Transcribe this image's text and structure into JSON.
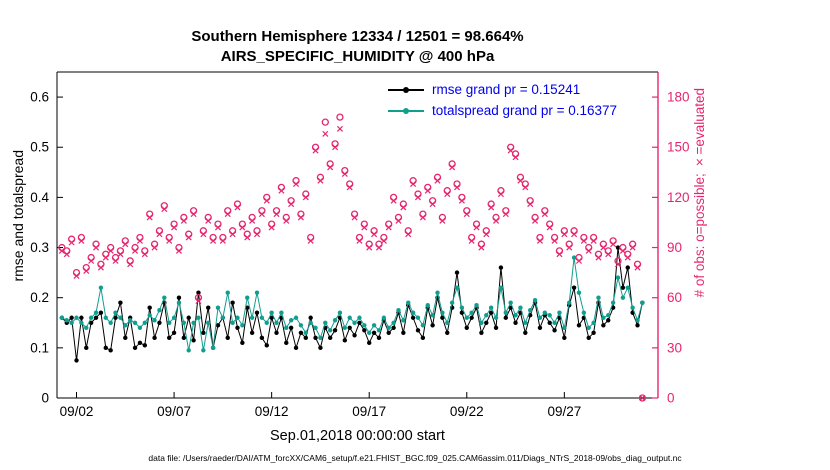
{
  "colors": {
    "rmse": "#000000",
    "totalspread": "#109e8f",
    "obs": "#e6256e",
    "legend_text": "#0000ee",
    "axis": "#000000"
  },
  "header": {
    "title": "Southern Hemisphere 12334 / 12501 = 98.664%",
    "subtitle": "AIRS_SPECIFIC_HUMIDITY @ 400 hPa"
  },
  "caption": "data file: /Users/raeder/DAI/ATM_forcXX/CAM6_setup/f.e21.FHIST_BGC.f09_025.CAM6assim.011/Diags_NTrS_2018-09/obs_diag_output.nc",
  "chart_data": {
    "type": "line",
    "title": "Southern Hemisphere 12334 / 12501 = 98.664%",
    "subtitle": "AIRS_SPECIFIC_HUMIDITY @ 400 hPa",
    "xlabel": "Sep.01,2018 00:00:00 start",
    "ylabel_left": "rmse and totalspread",
    "ylabel_right": "# of obs: o=possible; ×=evaluated",
    "grid": false,
    "legend_position": "top-right-inside",
    "x_start_day_offset": 0.25,
    "x_step_days": 0.25,
    "xlim_days": [
      0,
      30.8
    ],
    "x_ticks": [
      {
        "day": 1,
        "label": "09/02"
      },
      {
        "day": 6,
        "label": "09/07"
      },
      {
        "day": 11,
        "label": "09/12"
      },
      {
        "day": 16,
        "label": "09/17"
      },
      {
        "day": 21,
        "label": "09/22"
      },
      {
        "day": 26,
        "label": "09/27"
      }
    ],
    "ylim_left": [
      0,
      0.65
    ],
    "y_ticks_left": [
      "0",
      "0.1",
      "0.2",
      "0.3",
      "0.4",
      "0.5",
      "0.6"
    ],
    "y_tick_vals_left": [
      0,
      0.1,
      0.2,
      0.3,
      0.4,
      0.5,
      0.6
    ],
    "ylim_right": [
      0,
      195
    ],
    "y_ticks_right": [
      "0",
      "30",
      "60",
      "90",
      "120",
      "150",
      "180"
    ],
    "y_tick_vals_right": [
      0,
      30,
      60,
      90,
      120,
      150,
      180
    ],
    "legend": [
      {
        "label": "rmse grand pr = 0.15241",
        "series": "rmse"
      },
      {
        "label": "totalspread grand pr = 0.16377",
        "series": "totalspread"
      }
    ],
    "series": [
      {
        "name": "rmse",
        "axis": "left",
        "marker": "dot",
        "line": true,
        "color": "#000000",
        "values": [
          0.16,
          0.15,
          0.16,
          0.075,
          0.16,
          0.1,
          0.15,
          0.16,
          0.17,
          0.1,
          0.095,
          0.16,
          0.19,
          0.12,
          0.16,
          0.1,
          0.11,
          0.105,
          0.18,
          0.12,
          0.15,
          0.19,
          0.12,
          0.13,
          0.2,
          0.12,
          0.16,
          0.115,
          0.21,
          0.13,
          0.18,
          0.1,
          0.145,
          0.16,
          0.12,
          0.19,
          0.14,
          0.11,
          0.18,
          0.13,
          0.17,
          0.12,
          0.105,
          0.16,
          0.13,
          0.16,
          0.11,
          0.14,
          0.1,
          0.13,
          0.12,
          0.16,
          0.12,
          0.1,
          0.14,
          0.12,
          0.135,
          0.16,
          0.115,
          0.14,
          0.125,
          0.15,
          0.135,
          0.11,
          0.13,
          0.12,
          0.155,
          0.13,
          0.14,
          0.17,
          0.13,
          0.185,
          0.16,
          0.135,
          0.12,
          0.18,
          0.145,
          0.2,
          0.16,
          0.13,
          0.18,
          0.25,
          0.17,
          0.14,
          0.16,
          0.18,
          0.13,
          0.15,
          0.17,
          0.14,
          0.26,
          0.16,
          0.18,
          0.15,
          0.17,
          0.13,
          0.165,
          0.19,
          0.14,
          0.165,
          0.15,
          0.135,
          0.16,
          0.12,
          0.185,
          0.22,
          0.145,
          0.16,
          0.12,
          0.13,
          0.19,
          0.145,
          0.155,
          0.18,
          0.3,
          0.22,
          0.26,
          0.17,
          0.145,
          0.19
        ]
      },
      {
        "name": "totalspread",
        "axis": "left",
        "marker": "dot",
        "line": true,
        "color": "#109e8f",
        "values": [
          0.16,
          0.155,
          0.15,
          0.16,
          0.15,
          0.14,
          0.16,
          0.17,
          0.22,
          0.16,
          0.15,
          0.17,
          0.16,
          0.145,
          0.155,
          0.15,
          0.14,
          0.15,
          0.165,
          0.155,
          0.175,
          0.2,
          0.15,
          0.16,
          0.19,
          0.15,
          0.095,
          0.15,
          0.16,
          0.095,
          0.15,
          0.1,
          0.18,
          0.16,
          0.21,
          0.15,
          0.16,
          0.145,
          0.2,
          0.16,
          0.21,
          0.16,
          0.15,
          0.17,
          0.15,
          0.17,
          0.14,
          0.155,
          0.16,
          0.145,
          0.13,
          0.15,
          0.14,
          0.12,
          0.15,
          0.135,
          0.155,
          0.17,
          0.14,
          0.16,
          0.15,
          0.16,
          0.145,
          0.13,
          0.145,
          0.135,
          0.16,
          0.14,
          0.15,
          0.175,
          0.155,
          0.19,
          0.17,
          0.16,
          0.145,
          0.185,
          0.165,
          0.21,
          0.17,
          0.15,
          0.19,
          0.22,
          0.18,
          0.16,
          0.17,
          0.185,
          0.15,
          0.165,
          0.18,
          0.16,
          0.22,
          0.17,
          0.19,
          0.165,
          0.18,
          0.15,
          0.175,
          0.195,
          0.16,
          0.17,
          0.165,
          0.15,
          0.17,
          0.14,
          0.19,
          0.28,
          0.21,
          0.17,
          0.14,
          0.15,
          0.2,
          0.16,
          0.165,
          0.19,
          0.24,
          0.2,
          0.22,
          0.18,
          0.155,
          0.19
        ]
      },
      {
        "name": "possible",
        "axis": "right",
        "marker": "open-circle",
        "line": false,
        "color": "#e6256e",
        "values": [
          90,
          88,
          95,
          75,
          96,
          78,
          84,
          92,
          80,
          86,
          90,
          84,
          88,
          94,
          82,
          90,
          96,
          88,
          110,
          92,
          100,
          115,
          96,
          104,
          90,
          108,
          98,
          112,
          60,
          100,
          108,
          96,
          104,
          96,
          112,
          100,
          116,
          104,
          98,
          108,
          100,
          112,
          120,
          104,
          112,
          126,
          108,
          118,
          130,
          110,
          122,
          96,
          150,
          132,
          165,
          140,
          152,
          168,
          136,
          128,
          110,
          96,
          104,
          92,
          100,
          92,
          96,
          104,
          120,
          108,
          116,
          100,
          130,
          122,
          110,
          126,
          118,
          132,
          108,
          124,
          140,
          128,
          120,
          112,
          96,
          104,
          92,
          100,
          116,
          108,
          124,
          112,
          150,
          146,
          132,
          128,
          118,
          108,
          96,
          112,
          104,
          96,
          88,
          100,
          92,
          100,
          84,
          96,
          90,
          96,
          86,
          92,
          88,
          94,
          82,
          90,
          86,
          92,
          80,
          0
        ]
      },
      {
        "name": "evaluated",
        "axis": "right",
        "marker": "x",
        "line": false,
        "color": "#e6256e",
        "values": [
          88,
          86,
          93,
          73,
          94,
          76,
          82,
          90,
          78,
          84,
          88,
          82,
          86,
          92,
          80,
          88,
          94,
          86,
          108,
          90,
          98,
          113,
          94,
          102,
          88,
          106,
          96,
          110,
          58,
          98,
          106,
          94,
          102,
          94,
          110,
          98,
          114,
          102,
          96,
          106,
          98,
          110,
          118,
          102,
          110,
          124,
          106,
          116,
          128,
          108,
          120,
          94,
          148,
          130,
          158,
          138,
          150,
          161,
          134,
          126,
          108,
          94,
          102,
          90,
          98,
          90,
          94,
          102,
          118,
          106,
          114,
          98,
          128,
          120,
          108,
          124,
          116,
          130,
          106,
          122,
          138,
          126,
          118,
          110,
          94,
          102,
          90,
          98,
          114,
          106,
          122,
          110,
          148,
          144,
          130,
          126,
          116,
          106,
          94,
          110,
          102,
          94,
          86,
          98,
          90,
          98,
          82,
          94,
          88,
          94,
          84,
          90,
          86,
          92,
          80,
          88,
          84,
          90,
          78,
          0
        ]
      }
    ]
  }
}
